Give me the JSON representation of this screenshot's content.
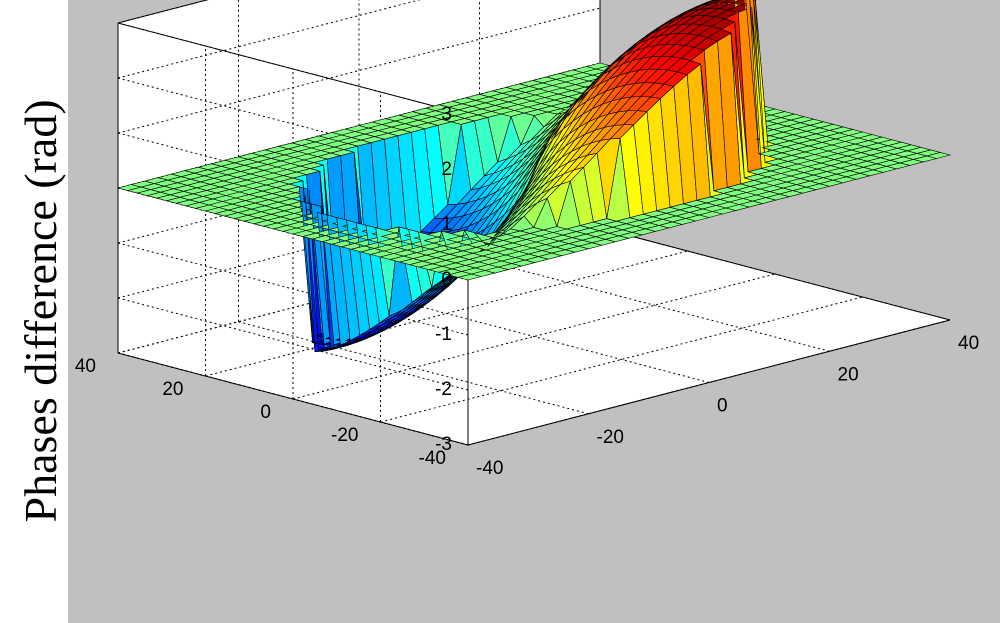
{
  "chart_data": {
    "type": "surface",
    "title": "",
    "xlabel": "",
    "ylabel": "",
    "zlabel": "Phases difference (rad)",
    "x_range": [
      -40,
      40
    ],
    "y_range": [
      -40,
      40
    ],
    "z_range": [
      -3,
      3
    ],
    "x_ticks": [
      "-40",
      "-20",
      "0",
      "20",
      "40"
    ],
    "y_ticks": [
      "-40",
      "-20",
      "0",
      "20",
      "40"
    ],
    "z_ticks": [
      "3",
      "2",
      "1",
      "0",
      "-1",
      "-2",
      "-3"
    ],
    "grid": true,
    "colormap": "jet",
    "surface_description": "phase difference surface over a square x-y domain, flat at 0 outside a central disk, rising to about +3 rad on one side and falling to about -3 rad on the other",
    "colors": {
      "plot_area": "#c0c0c0",
      "box_face": "#ffffff",
      "flat_region": "#7fffa0"
    }
  }
}
